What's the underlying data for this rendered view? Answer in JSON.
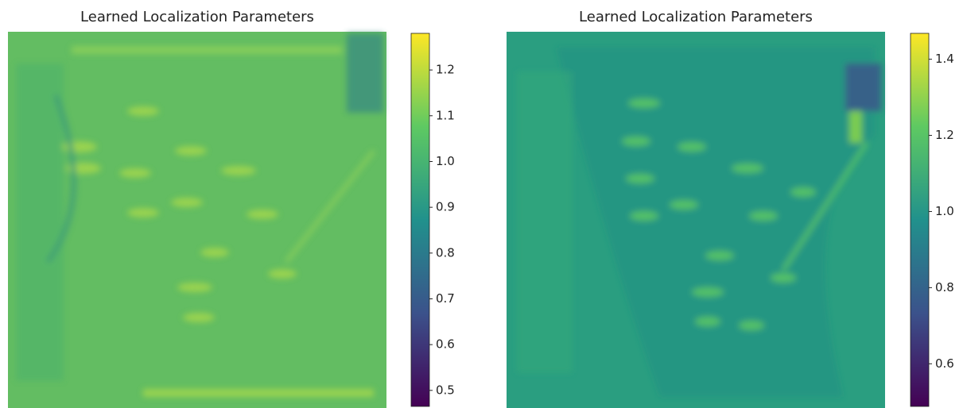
{
  "chart_data": [
    {
      "type": "heatmap",
      "title": "Learned Localization Parameters",
      "colormap": "viridis",
      "clim": [
        0.465,
        1.28
      ],
      "cticks": [
        {
          "value": 0.5,
          "label": "0.5"
        },
        0.6,
        0.7,
        0.8,
        0.9,
        {
          "value": 1,
          "label": "1.0"
        },
        1.1,
        1.2
      ]
    },
    {
      "type": "heatmap",
      "title": "Learned Localization Parameters",
      "colormap": "viridis",
      "clim": [
        0.488,
        1.468
      ],
      "cticks": [
        0.6,
        0.8,
        {
          "value": 1,
          "label": "1.0"
        },
        1.2,
        1.4
      ]
    }
  ]
}
